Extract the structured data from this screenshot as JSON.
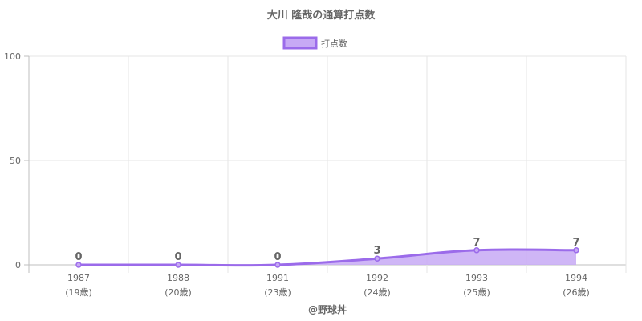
{
  "chart_data": {
    "type": "area",
    "title": "大川 隆哉の通算打点数",
    "x": [
      "1987",
      "1988",
      "1991",
      "1992",
      "1993",
      "1994"
    ],
    "x_sublabels": [
      "(19歳)",
      "(20歳)",
      "(23歳)",
      "(24歳)",
      "(25歳)",
      "(26歳)"
    ],
    "series": [
      {
        "name": "打点数",
        "values": [
          0,
          0,
          0,
          3,
          7,
          7
        ]
      }
    ],
    "ylim": [
      0,
      100
    ],
    "yticks": [
      0,
      50,
      100
    ],
    "xlabel": "",
    "ylabel": "",
    "legend": "top-center",
    "grid": true,
    "footer": "@野球丼"
  },
  "colors": {
    "line": "#9b6bea",
    "fill": "#c7a9f5",
    "grid": "#e6e6e6",
    "axis": "#bfbfbf",
    "text": "#666666"
  }
}
